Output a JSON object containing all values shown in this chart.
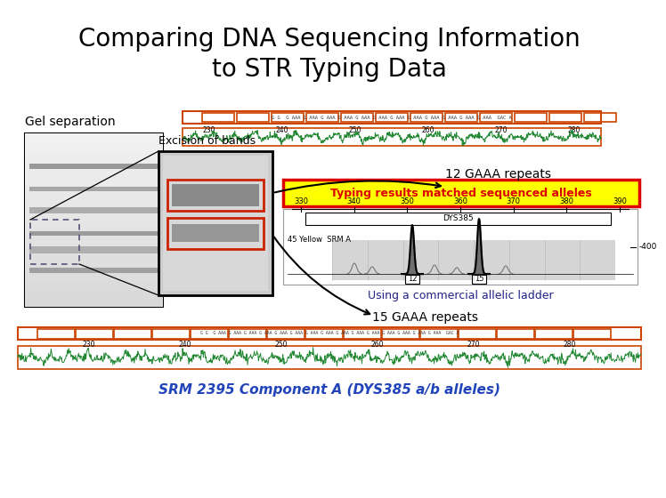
{
  "title": "Comparing DNA Sequencing Information\nto STR Typing Data",
  "title_fontsize": 20,
  "background_color": "#ffffff",
  "gel_label": "Gel separation",
  "excision_label": "Excision of bands",
  "repeat_12_label": "12 GAAA repeats",
  "repeat_15_label": "15 GAAA repeats",
  "typing_label": "Typing results matched sequenced alleles",
  "ladder_label": "Using a commercial allelic ladder",
  "bottom_label": "SRM 2395 Component A (DYS385 a/b alleles)",
  "dys_label": "DYS385",
  "srm_label": "45 Yellow  SRM A",
  "axis_label": "-400",
  "allele_12": "12",
  "allele_15": "15",
  "tick_labels": [
    "330",
    "340",
    "350",
    "360",
    "370",
    "380",
    "390"
  ],
  "orange": "#cc4400",
  "red": "#dd0000",
  "yellow": "#ffff00",
  "blue_text": "#2244bb",
  "dark_blue": "#222288"
}
